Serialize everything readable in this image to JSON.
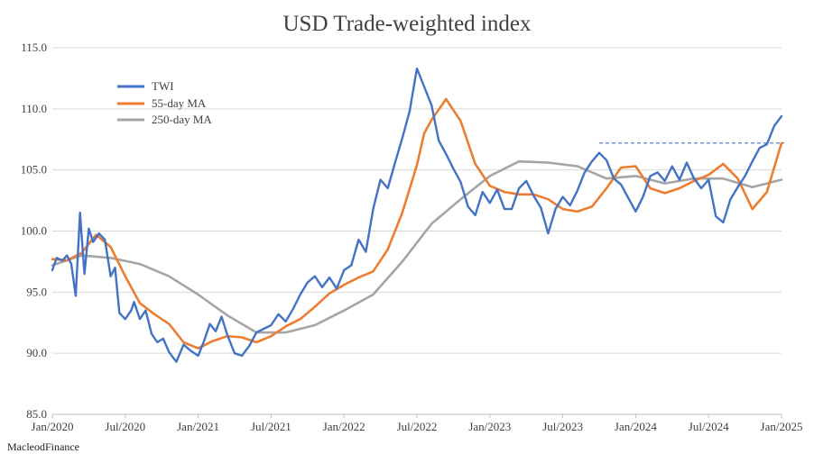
{
  "chart_data": {
    "type": "line",
    "title": "USD Trade-weighted index",
    "xlabel": "",
    "ylabel": "",
    "ylim": [
      85.0,
      115.0
    ],
    "y_ticks": [
      "85.0",
      "90.0",
      "95.0",
      "100.0",
      "105.0",
      "110.0",
      "115.0"
    ],
    "x_ticks": [
      "Jan/2020",
      "Jul/2020",
      "Jan/2021",
      "Jul/2021",
      "Jan/2022",
      "Jul/2022",
      "Jan/2023",
      "Jul/2023",
      "Jan/2024",
      "Jul/2024",
      "Jan/2025"
    ],
    "x_range_years": [
      2020.0,
      2025.0
    ],
    "grid": true,
    "legend_position": "top-left",
    "colors": {
      "TWI": "#4472c4",
      "55-day MA": "#ed7d31",
      "250-day MA": "#a5a5a5",
      "trendline": "#4472c4"
    },
    "series": [
      {
        "name": "TWI",
        "x": [
          2020.0,
          2020.03,
          2020.07,
          2020.1,
          2020.13,
          2020.16,
          2020.19,
          2020.2,
          2020.22,
          2020.25,
          2020.28,
          2020.32,
          2020.36,
          2020.4,
          2020.43,
          2020.46,
          2020.5,
          2020.54,
          2020.56,
          2020.6,
          2020.64,
          2020.68,
          2020.72,
          2020.76,
          2020.8,
          2020.85,
          2020.9,
          2020.95,
          2021.0,
          2021.04,
          2021.08,
          2021.12,
          2021.16,
          2021.2,
          2021.25,
          2021.3,
          2021.35,
          2021.4,
          2021.45,
          2021.5,
          2021.55,
          2021.6,
          2021.65,
          2021.7,
          2021.75,
          2021.8,
          2021.85,
          2021.9,
          2021.95,
          2022.0,
          2022.05,
          2022.1,
          2022.15,
          2022.2,
          2022.25,
          2022.3,
          2022.35,
          2022.4,
          2022.45,
          2022.5,
          2022.55,
          2022.6,
          2022.65,
          2022.7,
          2022.75,
          2022.8,
          2022.85,
          2022.9,
          2022.95,
          2023.0,
          2023.05,
          2023.1,
          2023.15,
          2023.2,
          2023.25,
          2023.3,
          2023.35,
          2023.4,
          2023.45,
          2023.5,
          2023.55,
          2023.6,
          2023.65,
          2023.7,
          2023.75,
          2023.8,
          2023.85,
          2023.9,
          2023.95,
          2024.0,
          2024.05,
          2024.1,
          2024.15,
          2024.2,
          2024.25,
          2024.3,
          2024.35,
          2024.4,
          2024.45,
          2024.5,
          2024.55,
          2024.6,
          2024.65,
          2024.7,
          2024.75,
          2024.8,
          2024.85,
          2024.9,
          2024.95,
          2025.0
        ],
        "values": [
          96.8,
          97.8,
          97.6,
          98.0,
          97.3,
          94.7,
          101.5,
          99.8,
          96.5,
          100.2,
          99.1,
          99.8,
          99.3,
          96.3,
          97.0,
          93.3,
          92.8,
          93.5,
          94.2,
          92.8,
          93.5,
          91.6,
          90.9,
          91.2,
          90.1,
          89.3,
          90.7,
          90.2,
          89.8,
          91.0,
          92.4,
          91.8,
          93.0,
          91.5,
          90.0,
          89.8,
          90.6,
          91.7,
          92.0,
          92.3,
          93.2,
          92.6,
          93.6,
          94.8,
          95.8,
          96.3,
          95.4,
          96.2,
          95.3,
          96.8,
          97.2,
          99.3,
          98.3,
          101.8,
          104.2,
          103.5,
          105.6,
          107.6,
          109.8,
          113.3,
          111.8,
          110.3,
          107.4,
          106.3,
          105.1,
          104.0,
          102.0,
          101.3,
          103.2,
          102.3,
          103.4,
          101.8,
          101.8,
          103.5,
          104.1,
          102.9,
          101.9,
          99.8,
          101.8,
          102.8,
          102.1,
          103.3,
          104.8,
          105.7,
          106.4,
          105.8,
          104.3,
          103.8,
          102.7,
          101.6,
          102.8,
          104.5,
          104.8,
          104.1,
          105.3,
          104.2,
          105.6,
          104.3,
          103.5,
          104.2,
          101.2,
          100.7,
          102.6,
          103.6,
          104.5,
          105.7,
          106.8,
          107.1,
          108.6,
          109.4
        ]
      },
      {
        "name": "55-day MA",
        "x": [
          2020.0,
          2020.1,
          2020.2,
          2020.3,
          2020.4,
          2020.5,
          2020.6,
          2020.7,
          2020.8,
          2020.9,
          2021.0,
          2021.1,
          2021.2,
          2021.3,
          2021.4,
          2021.5,
          2021.6,
          2021.7,
          2021.8,
          2021.9,
          2022.0,
          2022.1,
          2022.2,
          2022.3,
          2022.4,
          2022.5,
          2022.55,
          2022.6,
          2022.7,
          2022.8,
          2022.9,
          2023.0,
          2023.1,
          2023.2,
          2023.3,
          2023.4,
          2023.5,
          2023.6,
          2023.7,
          2023.8,
          2023.9,
          2024.0,
          2024.1,
          2024.2,
          2024.3,
          2024.4,
          2024.5,
          2024.6,
          2024.7,
          2024.8,
          2024.9,
          2025.0
        ],
        "values": [
          97.7,
          97.6,
          98.2,
          99.7,
          98.7,
          96.3,
          94.1,
          93.2,
          92.4,
          90.9,
          90.4,
          91.0,
          91.4,
          91.3,
          90.9,
          91.4,
          92.2,
          92.8,
          93.8,
          94.9,
          95.6,
          96.2,
          96.7,
          98.5,
          101.5,
          105.4,
          108.0,
          109.1,
          110.8,
          109.0,
          105.5,
          103.7,
          103.2,
          103.0,
          103.0,
          102.6,
          101.8,
          101.6,
          102.0,
          103.5,
          105.2,
          105.3,
          103.5,
          103.1,
          103.5,
          104.1,
          104.6,
          105.5,
          104.3,
          101.8,
          103.2,
          107.2
        ]
      },
      {
        "name": "250-day MA",
        "x": [
          2020.0,
          2020.2,
          2020.4,
          2020.6,
          2020.8,
          2021.0,
          2021.2,
          2021.4,
          2021.6,
          2021.8,
          2022.0,
          2022.2,
          2022.4,
          2022.6,
          2022.8,
          2023.0,
          2023.2,
          2023.4,
          2023.6,
          2023.8,
          2024.0,
          2024.2,
          2024.4,
          2024.6,
          2024.8,
          2025.0
        ],
        "values": [
          97.2,
          98.0,
          97.8,
          97.3,
          96.3,
          94.8,
          93.1,
          91.7,
          91.7,
          92.3,
          93.5,
          94.8,
          97.5,
          100.6,
          102.6,
          104.5,
          105.7,
          105.6,
          105.3,
          104.3,
          104.5,
          103.9,
          104.3,
          104.3,
          103.6,
          104.2
        ]
      }
    ],
    "annotations": [
      {
        "type": "dashed-trendline",
        "from": [
          2023.75,
          107.2
        ],
        "to": [
          2025.02,
          107.2
        ]
      }
    ]
  },
  "footer": {
    "text": "MacleodFinance"
  }
}
